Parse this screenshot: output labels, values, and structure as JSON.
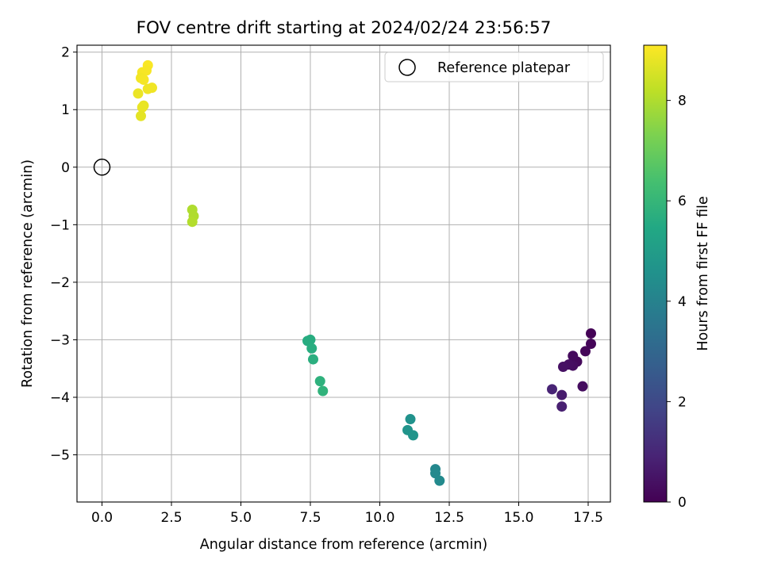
{
  "chart_data": {
    "type": "scatter",
    "title": "FOV centre drift starting at 2024/02/24 23:56:57",
    "xlabel": "Angular distance from reference (arcmin)",
    "ylabel": "Rotation from reference (arcmin)",
    "xlim": [
      -0.9,
      18.3
    ],
    "ylim": [
      -5.82,
      2.12
    ],
    "xticks": [
      0.0,
      2.5,
      5.0,
      7.5,
      10.0,
      12.5,
      15.0,
      17.5
    ],
    "xtick_labels": [
      "0.0",
      "2.5",
      "5.0",
      "7.5",
      "10.0",
      "12.5",
      "15.0",
      "17.5"
    ],
    "yticks": [
      -5,
      -4,
      -3,
      -2,
      -1,
      0,
      1,
      2
    ],
    "ytick_labels": [
      "−5",
      "−4",
      "−3",
      "−2",
      "−1",
      "0",
      "1",
      "2"
    ],
    "grid": true,
    "legend": {
      "placement": "top-right",
      "entries": [
        {
          "label": "Reference platepar",
          "marker": "open-circle"
        }
      ]
    },
    "reference_point": {
      "x": 0,
      "y": 0
    },
    "colorbar": {
      "label": "Hours from first FF file",
      "colormap": "viridis",
      "range": [
        0,
        9.1
      ],
      "ticks": [
        0,
        2,
        4,
        6,
        8
      ],
      "tick_labels": [
        "0",
        "2",
        "4",
        "6",
        "8"
      ]
    },
    "points": [
      {
        "x": 17.6,
        "y": -2.89,
        "hours": 0.05
      },
      {
        "x": 17.6,
        "y": -3.07,
        "hours": 0.1
      },
      {
        "x": 17.4,
        "y": -3.2,
        "hours": 0.15
      },
      {
        "x": 17.1,
        "y": -3.38,
        "hours": 0.2
      },
      {
        "x": 16.95,
        "y": -3.28,
        "hours": 0.25
      },
      {
        "x": 16.95,
        "y": -3.45,
        "hours": 0.3
      },
      {
        "x": 16.8,
        "y": -3.43,
        "hours": 0.35
      },
      {
        "x": 16.6,
        "y": -3.47,
        "hours": 0.4
      },
      {
        "x": 17.3,
        "y": -3.81,
        "hours": 0.3
      },
      {
        "x": 16.55,
        "y": -3.96,
        "hours": 0.7
      },
      {
        "x": 16.55,
        "y": -4.16,
        "hours": 0.8
      },
      {
        "x": 16.2,
        "y": -3.86,
        "hours": 0.9
      },
      {
        "x": 12.0,
        "y": -5.25,
        "hours": 4.2
      },
      {
        "x": 12.0,
        "y": -5.32,
        "hours": 4.25
      },
      {
        "x": 12.15,
        "y": -5.45,
        "hours": 4.3
      },
      {
        "x": 11.1,
        "y": -4.38,
        "hours": 4.6
      },
      {
        "x": 11.0,
        "y": -4.57,
        "hours": 4.65
      },
      {
        "x": 11.2,
        "y": -4.66,
        "hours": 4.7
      },
      {
        "x": 7.4,
        "y": -3.02,
        "hours": 5.6
      },
      {
        "x": 7.5,
        "y": -3.0,
        "hours": 5.62
      },
      {
        "x": 7.55,
        "y": -3.15,
        "hours": 5.65
      },
      {
        "x": 7.6,
        "y": -3.34,
        "hours": 5.7
      },
      {
        "x": 7.85,
        "y": -3.72,
        "hours": 5.8
      },
      {
        "x": 7.95,
        "y": -3.89,
        "hours": 5.85
      },
      {
        "x": 3.25,
        "y": -0.74,
        "hours": 8.0
      },
      {
        "x": 3.3,
        "y": -0.85,
        "hours": 8.02
      },
      {
        "x": 3.25,
        "y": -0.95,
        "hours": 8.05
      },
      {
        "x": 1.65,
        "y": 1.77,
        "hours": 9.05
      },
      {
        "x": 1.45,
        "y": 1.65,
        "hours": 9.0
      },
      {
        "x": 1.6,
        "y": 1.68,
        "hours": 9.02
      },
      {
        "x": 1.4,
        "y": 1.55,
        "hours": 8.95
      },
      {
        "x": 1.5,
        "y": 1.52,
        "hours": 8.98
      },
      {
        "x": 1.65,
        "y": 1.36,
        "hours": 8.9
      },
      {
        "x": 1.8,
        "y": 1.38,
        "hours": 8.92
      },
      {
        "x": 1.3,
        "y": 1.28,
        "hours": 8.85
      },
      {
        "x": 1.5,
        "y": 1.07,
        "hours": 8.8
      },
      {
        "x": 1.45,
        "y": 1.04,
        "hours": 8.82
      },
      {
        "x": 1.4,
        "y": 0.89,
        "hours": 8.75
      }
    ]
  }
}
